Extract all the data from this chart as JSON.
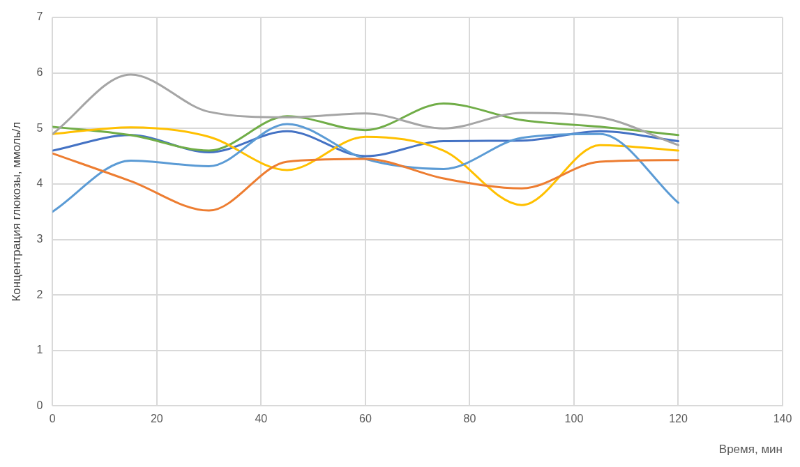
{
  "chart_data": {
    "type": "line",
    "xlabel": "Время, мин",
    "ylabel": "Концентрация глюкозы, ммоль/л",
    "x": [
      0,
      15,
      30,
      45,
      60,
      75,
      90,
      105,
      120
    ],
    "xlim": [
      0,
      140
    ],
    "xticks": [
      0,
      20,
      40,
      60,
      80,
      100,
      120,
      140
    ],
    "ylim": [
      0,
      7
    ],
    "yticks": [
      0,
      1,
      2,
      3,
      4,
      5,
      6,
      7
    ],
    "grid": true,
    "legend": false,
    "marker": "none",
    "line_style": "solid",
    "series": [
      {
        "color": "#a5a5a5",
        "values": [
          4.9,
          5.97,
          5.3,
          5.2,
          5.27,
          5.0,
          5.28,
          5.2,
          4.7
        ]
      },
      {
        "color": "#ed7d31",
        "values": [
          4.55,
          4.05,
          3.52,
          4.4,
          4.45,
          4.1,
          3.92,
          4.4,
          4.43
        ]
      },
      {
        "color": "#5b9bd5",
        "values": [
          3.5,
          4.42,
          4.32,
          5.08,
          4.45,
          4.27,
          4.83,
          4.9,
          3.66
        ]
      },
      {
        "color": "#ffc000",
        "values": [
          4.9,
          5.02,
          4.85,
          4.25,
          4.85,
          4.6,
          3.62,
          4.7,
          4.6
        ]
      },
      {
        "color": "#70ad47",
        "values": [
          5.03,
          4.88,
          4.6,
          5.22,
          4.97,
          5.45,
          5.15,
          5.03,
          4.88
        ]
      },
      {
        "color": "#4472c4",
        "values": [
          4.6,
          4.88,
          4.57,
          4.95,
          4.5,
          4.77,
          4.78,
          4.95,
          4.77
        ]
      }
    ]
  }
}
